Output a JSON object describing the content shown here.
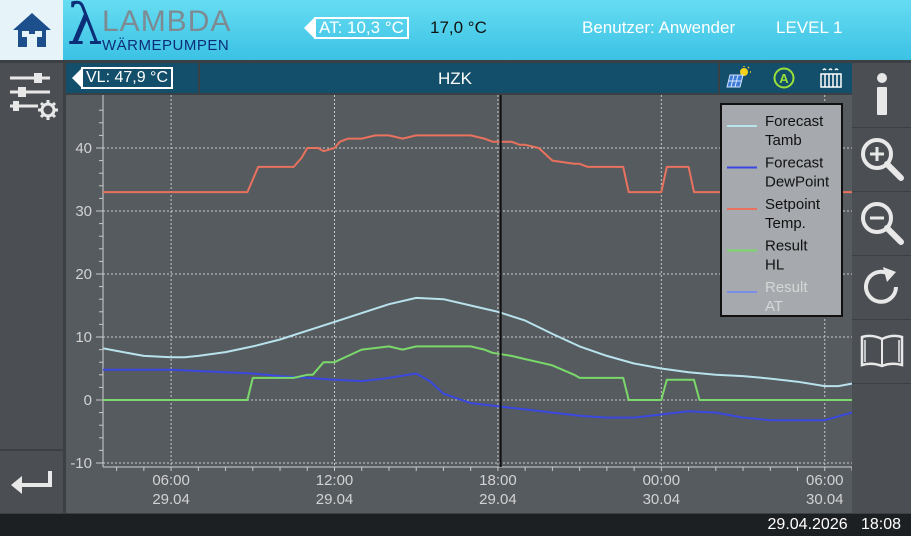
{
  "header": {
    "brand": "LAMBDA",
    "brand_sub": "WÄRMEPUMPEN",
    "outside_temp_label": "AT:  10,3 °C",
    "outside_temp_2": "17,0 °C",
    "user_label": "Benutzer: Anwender",
    "level": "LEVEL 1"
  },
  "panel": {
    "flow_temp_label": "VL:  47,9 °C",
    "title": "HZK"
  },
  "status": {
    "date": "29.04.2026",
    "time": "18:08"
  },
  "chart_data": {
    "type": "line",
    "x_time_range": [
      "2026-04-29 03:30",
      "2026-04-30 07:00"
    ],
    "ylim": [
      -10,
      48
    ],
    "yticks": [
      -10,
      0,
      10,
      20,
      30,
      40
    ],
    "xticks": [
      {
        "time": "06:00",
        "date": "29.04",
        "hours": 6
      },
      {
        "time": "12:00",
        "date": "29.04",
        "hours": 12
      },
      {
        "time": "18:00",
        "date": "29.04",
        "hours": 18
      },
      {
        "time": "00:00",
        "date": "30.04",
        "hours": 24
      },
      {
        "time": "06:00",
        "date": "30.04",
        "hours": 30
      }
    ],
    "cursor_hours": 18.1,
    "grid": true,
    "legend_placement": "top-right",
    "series": [
      {
        "name": "Forecast Tamb",
        "name_lines": [
          "Forecast",
          "Tamb"
        ],
        "color": "#b8e2ec",
        "dimmed": false,
        "x": [
          3.5,
          4,
          5,
          6,
          6.5,
          7,
          8,
          9,
          10,
          11,
          12,
          13,
          14,
          15,
          16,
          17,
          18,
          19,
          20,
          21,
          22,
          23,
          24,
          25,
          26,
          27,
          28,
          29,
          30,
          30.5,
          31
        ],
        "y": [
          8.2,
          7.8,
          7,
          6.8,
          6.8,
          7,
          7.6,
          8.5,
          9.6,
          11,
          12.4,
          13.8,
          15.2,
          16.2,
          16,
          15,
          14,
          12.6,
          10.5,
          8.5,
          7,
          5.8,
          5,
          4.4,
          4,
          3.8,
          3.4,
          2.9,
          2.2,
          2.2,
          2.6
        ]
      },
      {
        "name": "Forecast DewPoint",
        "name_lines": [
          "Forecast",
          "DewPoint"
        ],
        "color": "#3a48e0",
        "dimmed": false,
        "x": [
          3.5,
          5,
          6,
          7,
          8,
          9,
          10,
          11,
          12,
          13,
          14,
          15,
          15.5,
          16,
          17,
          18,
          19,
          20,
          21,
          22,
          23,
          24,
          25,
          26,
          27,
          28,
          29,
          30,
          31
        ],
        "y": [
          4.8,
          4.8,
          4.8,
          4.6,
          4.4,
          4.2,
          3.8,
          3.5,
          3.2,
          3,
          3.5,
          4.2,
          3,
          1,
          -0.5,
          -1,
          -1.5,
          -2,
          -2.5,
          -2.8,
          -2.8,
          -2.3,
          -1.8,
          -2,
          -2.8,
          -3.2,
          -3.2,
          -3.2,
          -2
        ]
      },
      {
        "name": "Setpoint Temp.",
        "name_lines": [
          "Setpoint",
          "Temp."
        ],
        "color": "#e8725e",
        "dimmed": false,
        "x": [
          3.5,
          8.8,
          9,
          9.2,
          10.5,
          10.8,
          11,
          11.4,
          11.6,
          12,
          12.2,
          12.5,
          13,
          13.5,
          14,
          14.5,
          15,
          15.5,
          17,
          17.5,
          17.8,
          18.5,
          18.8,
          19,
          19.5,
          20,
          20.8,
          21,
          21.3,
          22.6,
          22.8,
          24,
          24.2,
          25,
          25.2,
          26,
          31
        ],
        "y": [
          33,
          33,
          35,
          37,
          37,
          38.5,
          40,
          40,
          39.5,
          40,
          41,
          41.5,
          41.5,
          42,
          42,
          41.5,
          42,
          42,
          42,
          41.5,
          41,
          41,
          40.5,
          40.5,
          40,
          38,
          37.5,
          37.5,
          37,
          37,
          33,
          33,
          37,
          37,
          33,
          33,
          33
        ]
      },
      {
        "name": "Result HL",
        "name_lines": [
          "Result",
          "HL"
        ],
        "color": "#7ad96a",
        "dimmed": false,
        "x": [
          3.5,
          8.8,
          9,
          10.5,
          11,
          11.2,
          11.6,
          12,
          12.5,
          13,
          14,
          14.5,
          15,
          15.5,
          17,
          17.5,
          17.8,
          18.5,
          19,
          19.5,
          20,
          20.8,
          21,
          21.3,
          22.6,
          22.8,
          24,
          24.2,
          25.2,
          25.4,
          31
        ],
        "y": [
          0,
          0,
          3.5,
          3.5,
          4,
          4,
          6,
          6,
          7,
          8,
          8.5,
          8,
          8.5,
          8.5,
          8.5,
          8,
          7.5,
          7,
          6.5,
          6,
          5.5,
          4,
          3.5,
          3.5,
          3.5,
          0,
          0,
          3.2,
          3.2,
          0,
          0
        ]
      },
      {
        "name": "Result AT",
        "name_lines": [
          "Result",
          "AT"
        ],
        "color": "#7a8ee8",
        "dimmed": true,
        "x": [],
        "y": []
      }
    ]
  }
}
